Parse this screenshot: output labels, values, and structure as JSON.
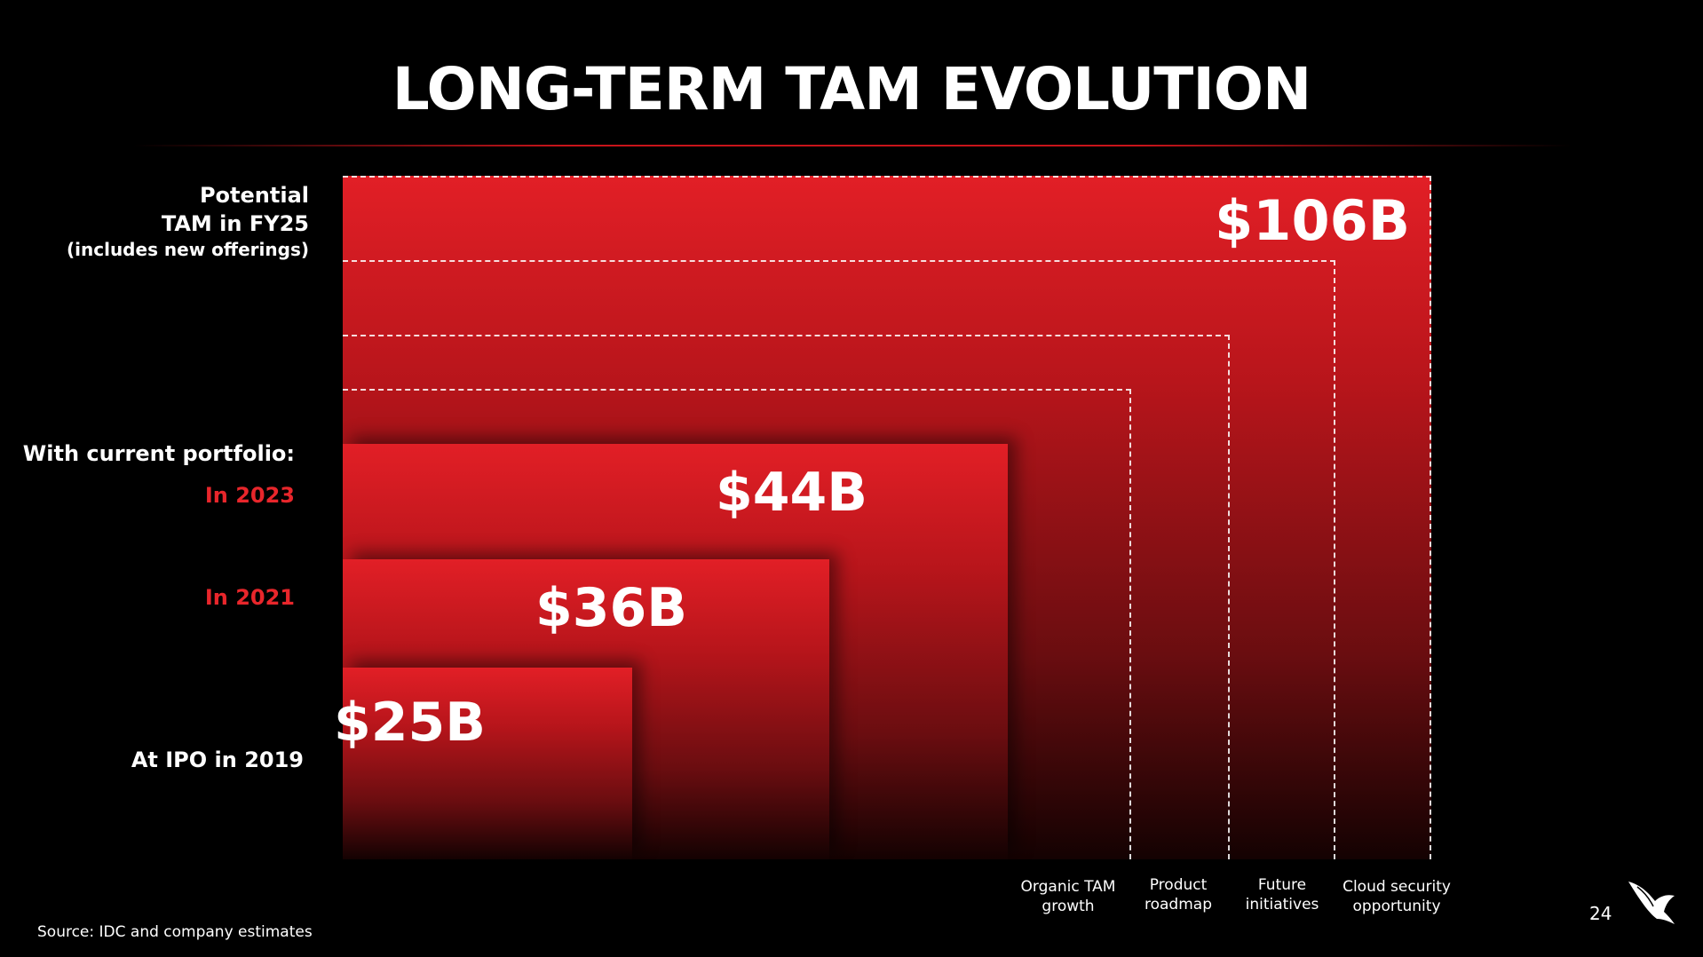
{
  "title": "LONG-TERM TAM EVOLUTION",
  "labels": {
    "potential_line1": "Potential",
    "potential_line2": "TAM in FY25",
    "potential_line3": "(includes new offerings)",
    "current_portfolio": "With current portfolio:",
    "in_2023": "In 2023",
    "in_2021": "In 2021",
    "ipo_2019": "At IPO in 2019"
  },
  "chart_data": {
    "type": "bar",
    "categories": [
      "At IPO in 2019",
      "In 2021",
      "In 2023",
      "Potential TAM in FY25"
    ],
    "values": [
      25,
      36,
      44,
      106
    ],
    "value_labels": [
      "$25B",
      "$36B",
      "$44B",
      "$106B"
    ],
    "unit": "$B",
    "growth_components": [
      "Organic TAM growth",
      "Product roadmap",
      "Future initiatives",
      "Cloud security opportunity"
    ],
    "title": "LONG-TERM TAM EVOLUTION"
  },
  "categories_text": {
    "organic": [
      "Organic TAM",
      "growth"
    ],
    "roadmap": [
      "Product",
      "roadmap"
    ],
    "future": [
      "Future",
      "initiatives"
    ],
    "cloud": [
      "Cloud security",
      "opportunity"
    ]
  },
  "source": "Source: IDC and company estimates",
  "page_number": "24",
  "colors": {
    "accent": "#e21f26",
    "background": "#000000"
  },
  "logo_icon": "falcon-logo-icon"
}
